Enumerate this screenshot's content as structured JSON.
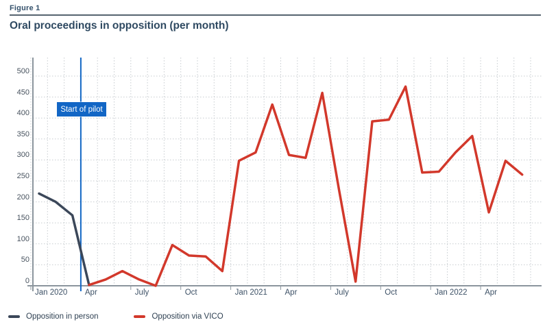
{
  "header": {
    "figure_label": "Figure 1",
    "title": "Oral proceedings in opposition (per month)"
  },
  "pilot": {
    "label": "Start of pilot"
  },
  "legend": {
    "items": [
      {
        "label": "Opposition in person",
        "color": "#3b4759"
      },
      {
        "label": "Opposition via VICO",
        "color": "#d2382b"
      }
    ]
  },
  "colors": {
    "in_person_line": "#3b4759",
    "vico_line": "#d2382b",
    "pilot_blue": "#1266c5",
    "axis_gray": "#8b959d",
    "grid_gray": "#c6cbcf",
    "text_navy": "#2e4961"
  },
  "chart_data": {
    "type": "line",
    "title": "Oral proceedings in opposition (per month)",
    "categories": [
      "Jan 2020",
      "Feb 2020",
      "Mar 2020",
      "Apr 2020",
      "May 2020",
      "Jun 2020",
      "Jul 2020",
      "Aug 2020",
      "Sep 2020",
      "Oct 2020",
      "Nov 2020",
      "Dec 2020",
      "Jan 2021",
      "Feb 2021",
      "Mar 2021",
      "Apr 2021",
      "May 2021",
      "Jun 2021",
      "Jul 2021",
      "Aug 2021",
      "Sep 2021",
      "Oct 2021",
      "Nov 2021",
      "Dec 2021",
      "Jan 2022",
      "Feb 2022",
      "Mar 2022",
      "Apr 2022",
      "May 2022",
      "Jun 2022"
    ],
    "series": [
      {
        "name": "Opposition in person",
        "color": "#3b4759",
        "values": [
          220,
          200,
          168,
          2,
          null,
          null,
          null,
          null,
          null,
          null,
          null,
          null,
          null,
          null,
          null,
          null,
          null,
          null,
          null,
          null,
          null,
          null,
          null,
          null,
          null,
          null,
          null,
          null,
          null,
          null
        ]
      },
      {
        "name": "Opposition via VICO",
        "color": "#d2382b",
        "values": [
          null,
          null,
          null,
          2,
          15,
          35,
          15,
          0,
          97,
          72,
          70,
          35,
          298,
          318,
          432,
          312,
          305,
          460,
          230,
          10,
          392,
          396,
          475,
          270,
          272,
          318,
          357,
          175,
          298,
          265
        ]
      }
    ],
    "xticks": {
      "positions": [
        0,
        3,
        6,
        9,
        12,
        15,
        18,
        21,
        24,
        27
      ],
      "labels": [
        "Jan 2020",
        "Apr",
        "July",
        "Oct",
        "Jan 2021",
        "Apr",
        "July",
        "Oct",
        "Jan 2022",
        "Apr"
      ]
    },
    "yticks": [
      0,
      50,
      100,
      150,
      200,
      250,
      300,
      350,
      400,
      450,
      500
    ],
    "ylim": [
      0,
      540
    ],
    "grid": "dotted",
    "legend_position": "bottom-left",
    "annotations": [
      {
        "type": "vline",
        "x_category": "Apr 2020",
        "label": "Start of pilot",
        "color": "#1266c5"
      }
    ]
  }
}
